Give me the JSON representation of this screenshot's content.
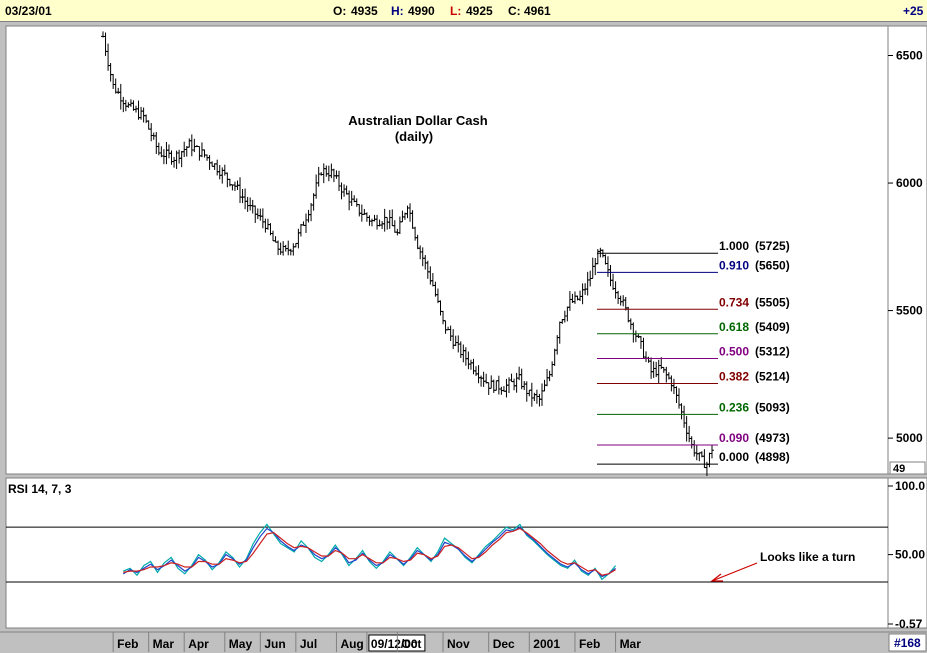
{
  "header": {
    "date": "03/23/01",
    "open_label": "O:",
    "open_value": "4935",
    "high_label": "H:",
    "high_value": "4990",
    "low_label": "L:",
    "low_value": "4925",
    "close_label": "C:",
    "close_value": "4961",
    "change": "+25"
  },
  "chart_data": [
    {
      "type": "ohlc",
      "title": "Australian Dollar Cash",
      "subtitle": "(daily)",
      "ylim": [
        4875,
        6600
      ],
      "y_ticks": [
        "6500",
        "6000",
        "5500",
        "5000"
      ],
      "y_tick_values": [
        6500,
        6000,
        5500,
        5000
      ],
      "y_axis_partial_label": "49",
      "series_path": [
        [
          0,
          6575
        ],
        [
          2,
          6380
        ],
        [
          5,
          6300
        ],
        [
          8,
          6260
        ],
        [
          11,
          6120
        ],
        [
          14,
          6100
        ],
        [
          17,
          6150
        ],
        [
          20,
          6110
        ],
        [
          23,
          6050
        ],
        [
          26,
          5990
        ],
        [
          29,
          5900
        ],
        [
          32,
          5840
        ],
        [
          34,
          5750
        ],
        [
          36,
          5730
        ],
        [
          38,
          5770
        ],
        [
          41,
          5920
        ],
        [
          43,
          6050
        ],
        [
          45,
          6040
        ],
        [
          47,
          5980
        ],
        [
          50,
          5900
        ],
        [
          53,
          5850
        ],
        [
          56,
          5860
        ],
        [
          58,
          5800
        ],
        [
          60,
          5920
        ],
        [
          62,
          5760
        ],
        [
          65,
          5600
        ],
        [
          67,
          5450
        ],
        [
          70,
          5350
        ],
        [
          73,
          5280
        ],
        [
          76,
          5210
        ],
        [
          79,
          5200
        ],
        [
          82,
          5230
        ],
        [
          84,
          5170
        ],
        [
          86,
          5150
        ],
        [
          88,
          5250
        ],
        [
          90,
          5460
        ],
        [
          92,
          5530
        ],
        [
          94,
          5550
        ],
        [
          96,
          5630
        ],
        [
          97,
          5700
        ],
        [
          98,
          5725
        ],
        [
          100,
          5620
        ],
        [
          102,
          5550
        ],
        [
          104,
          5450
        ],
        [
          106,
          5360
        ],
        [
          108,
          5260
        ],
        [
          110,
          5270
        ],
        [
          112,
          5220
        ],
        [
          114,
          5100
        ],
        [
          116,
          4970
        ],
        [
          118,
          4910
        ],
        [
          119,
          4898
        ],
        [
          120,
          4961
        ]
      ],
      "fibonacci": [
        {
          "ratio": "1.000",
          "value": "(5725)",
          "level": 5725,
          "color": "#000000"
        },
        {
          "ratio": "0.910",
          "value": "(5650)",
          "level": 5650,
          "color": "#000080"
        },
        {
          "ratio": "0.734",
          "value": "(5505)",
          "level": 5505,
          "color": "#800000"
        },
        {
          "ratio": "0.618",
          "value": "(5409)",
          "level": 5409,
          "color": "#006600"
        },
        {
          "ratio": "0.500",
          "value": "(5312)",
          "level": 5312,
          "color": "#800080"
        },
        {
          "ratio": "0.382",
          "value": "(5214)",
          "level": 5214,
          "color": "#800000"
        },
        {
          "ratio": "0.236",
          "value": "(5093)",
          "level": 5093,
          "color": "#006600"
        },
        {
          "ratio": "0.090",
          "value": "(4973)",
          "level": 4973,
          "color": "#800080"
        },
        {
          "ratio": "0.000",
          "value": "(4898)",
          "level": 4898,
          "color": "#000000"
        }
      ],
      "x_range": [
        0,
        120
      ],
      "x_ticks": [
        {
          "label": "Feb",
          "x": 2
        },
        {
          "label": "Mar",
          "x": 9
        },
        {
          "label": "Apr",
          "x": 16
        },
        {
          "label": "May",
          "x": 24
        },
        {
          "label": "Jun",
          "x": 31
        },
        {
          "label": "Jul",
          "x": 38
        },
        {
          "label": "Aug",
          "x": 46
        },
        {
          "label": "09/12/00",
          "x": 52
        },
        {
          "label": "Oct",
          "x": 58
        },
        {
          "label": "Nov",
          "x": 67
        },
        {
          "label": "Dec",
          "x": 76
        },
        {
          "label": "2001",
          "x": 84
        },
        {
          "label": "Feb",
          "x": 93
        },
        {
          "label": "Mar",
          "x": 101
        }
      ]
    },
    {
      "type": "line",
      "title": "RSI 14, 7, 3",
      "ylim": [
        -0.57,
        100
      ],
      "y_ticks": [
        "100.0",
        "50.00",
        "-0.57"
      ],
      "y_tick_values": [
        100,
        50,
        -0.57
      ],
      "reference_lines": [
        70,
        30
      ],
      "series": [
        {
          "color": "#00aaaa",
          "values": [
            38,
            40,
            35,
            42,
            45,
            37,
            44,
            48,
            40,
            36,
            42,
            50,
            46,
            39,
            44,
            52,
            48,
            41,
            47,
            58,
            66,
            72,
            65,
            58,
            55,
            52,
            60,
            55,
            48,
            45,
            50,
            57,
            50,
            42,
            47,
            53,
            45,
            40,
            45,
            52,
            47,
            42,
            48,
            55,
            50,
            45,
            52,
            62,
            58,
            54,
            48,
            44,
            50,
            56,
            60,
            65,
            70,
            68,
            72,
            64,
            60,
            55,
            50,
            46,
            42,
            40,
            46,
            38,
            35,
            40,
            32,
            36,
            42
          ]
        },
        {
          "color": "#2244cc",
          "values": [
            36,
            39,
            37,
            40,
            43,
            39,
            42,
            46,
            42,
            38,
            41,
            48,
            45,
            41,
            43,
            50,
            47,
            43,
            46,
            55,
            63,
            69,
            66,
            60,
            56,
            53,
            57,
            55,
            50,
            47,
            49,
            55,
            51,
            44,
            46,
            51,
            46,
            42,
            44,
            50,
            47,
            43,
            47,
            53,
            50,
            46,
            50,
            59,
            57,
            54,
            49,
            45,
            49,
            54,
            59,
            63,
            68,
            67,
            70,
            65,
            61,
            56,
            51,
            47,
            43,
            41,
            44,
            39,
            36,
            39,
            34,
            36,
            40
          ]
        },
        {
          "color": "#cc2222",
          "values": [
            37,
            38,
            38,
            39,
            41,
            41,
            42,
            44,
            43,
            41,
            41,
            45,
            45,
            43,
            43,
            47,
            46,
            44,
            45,
            51,
            58,
            65,
            66,
            62,
            58,
            55,
            56,
            55,
            52,
            49,
            49,
            53,
            51,
            47,
            47,
            50,
            47,
            44,
            44,
            48,
            47,
            45,
            46,
            51,
            50,
            47,
            49,
            56,
            57,
            55,
            51,
            47,
            48,
            52,
            57,
            61,
            66,
            67,
            69,
            66,
            62,
            58,
            53,
            49,
            45,
            43,
            44,
            41,
            38,
            39,
            35,
            36,
            39
          ]
        }
      ],
      "x_start": 4,
      "x_end": 101
    }
  ],
  "annotation": {
    "text": "Looks like a turn",
    "color": "#cc0000"
  },
  "scroll_counter": "#168"
}
